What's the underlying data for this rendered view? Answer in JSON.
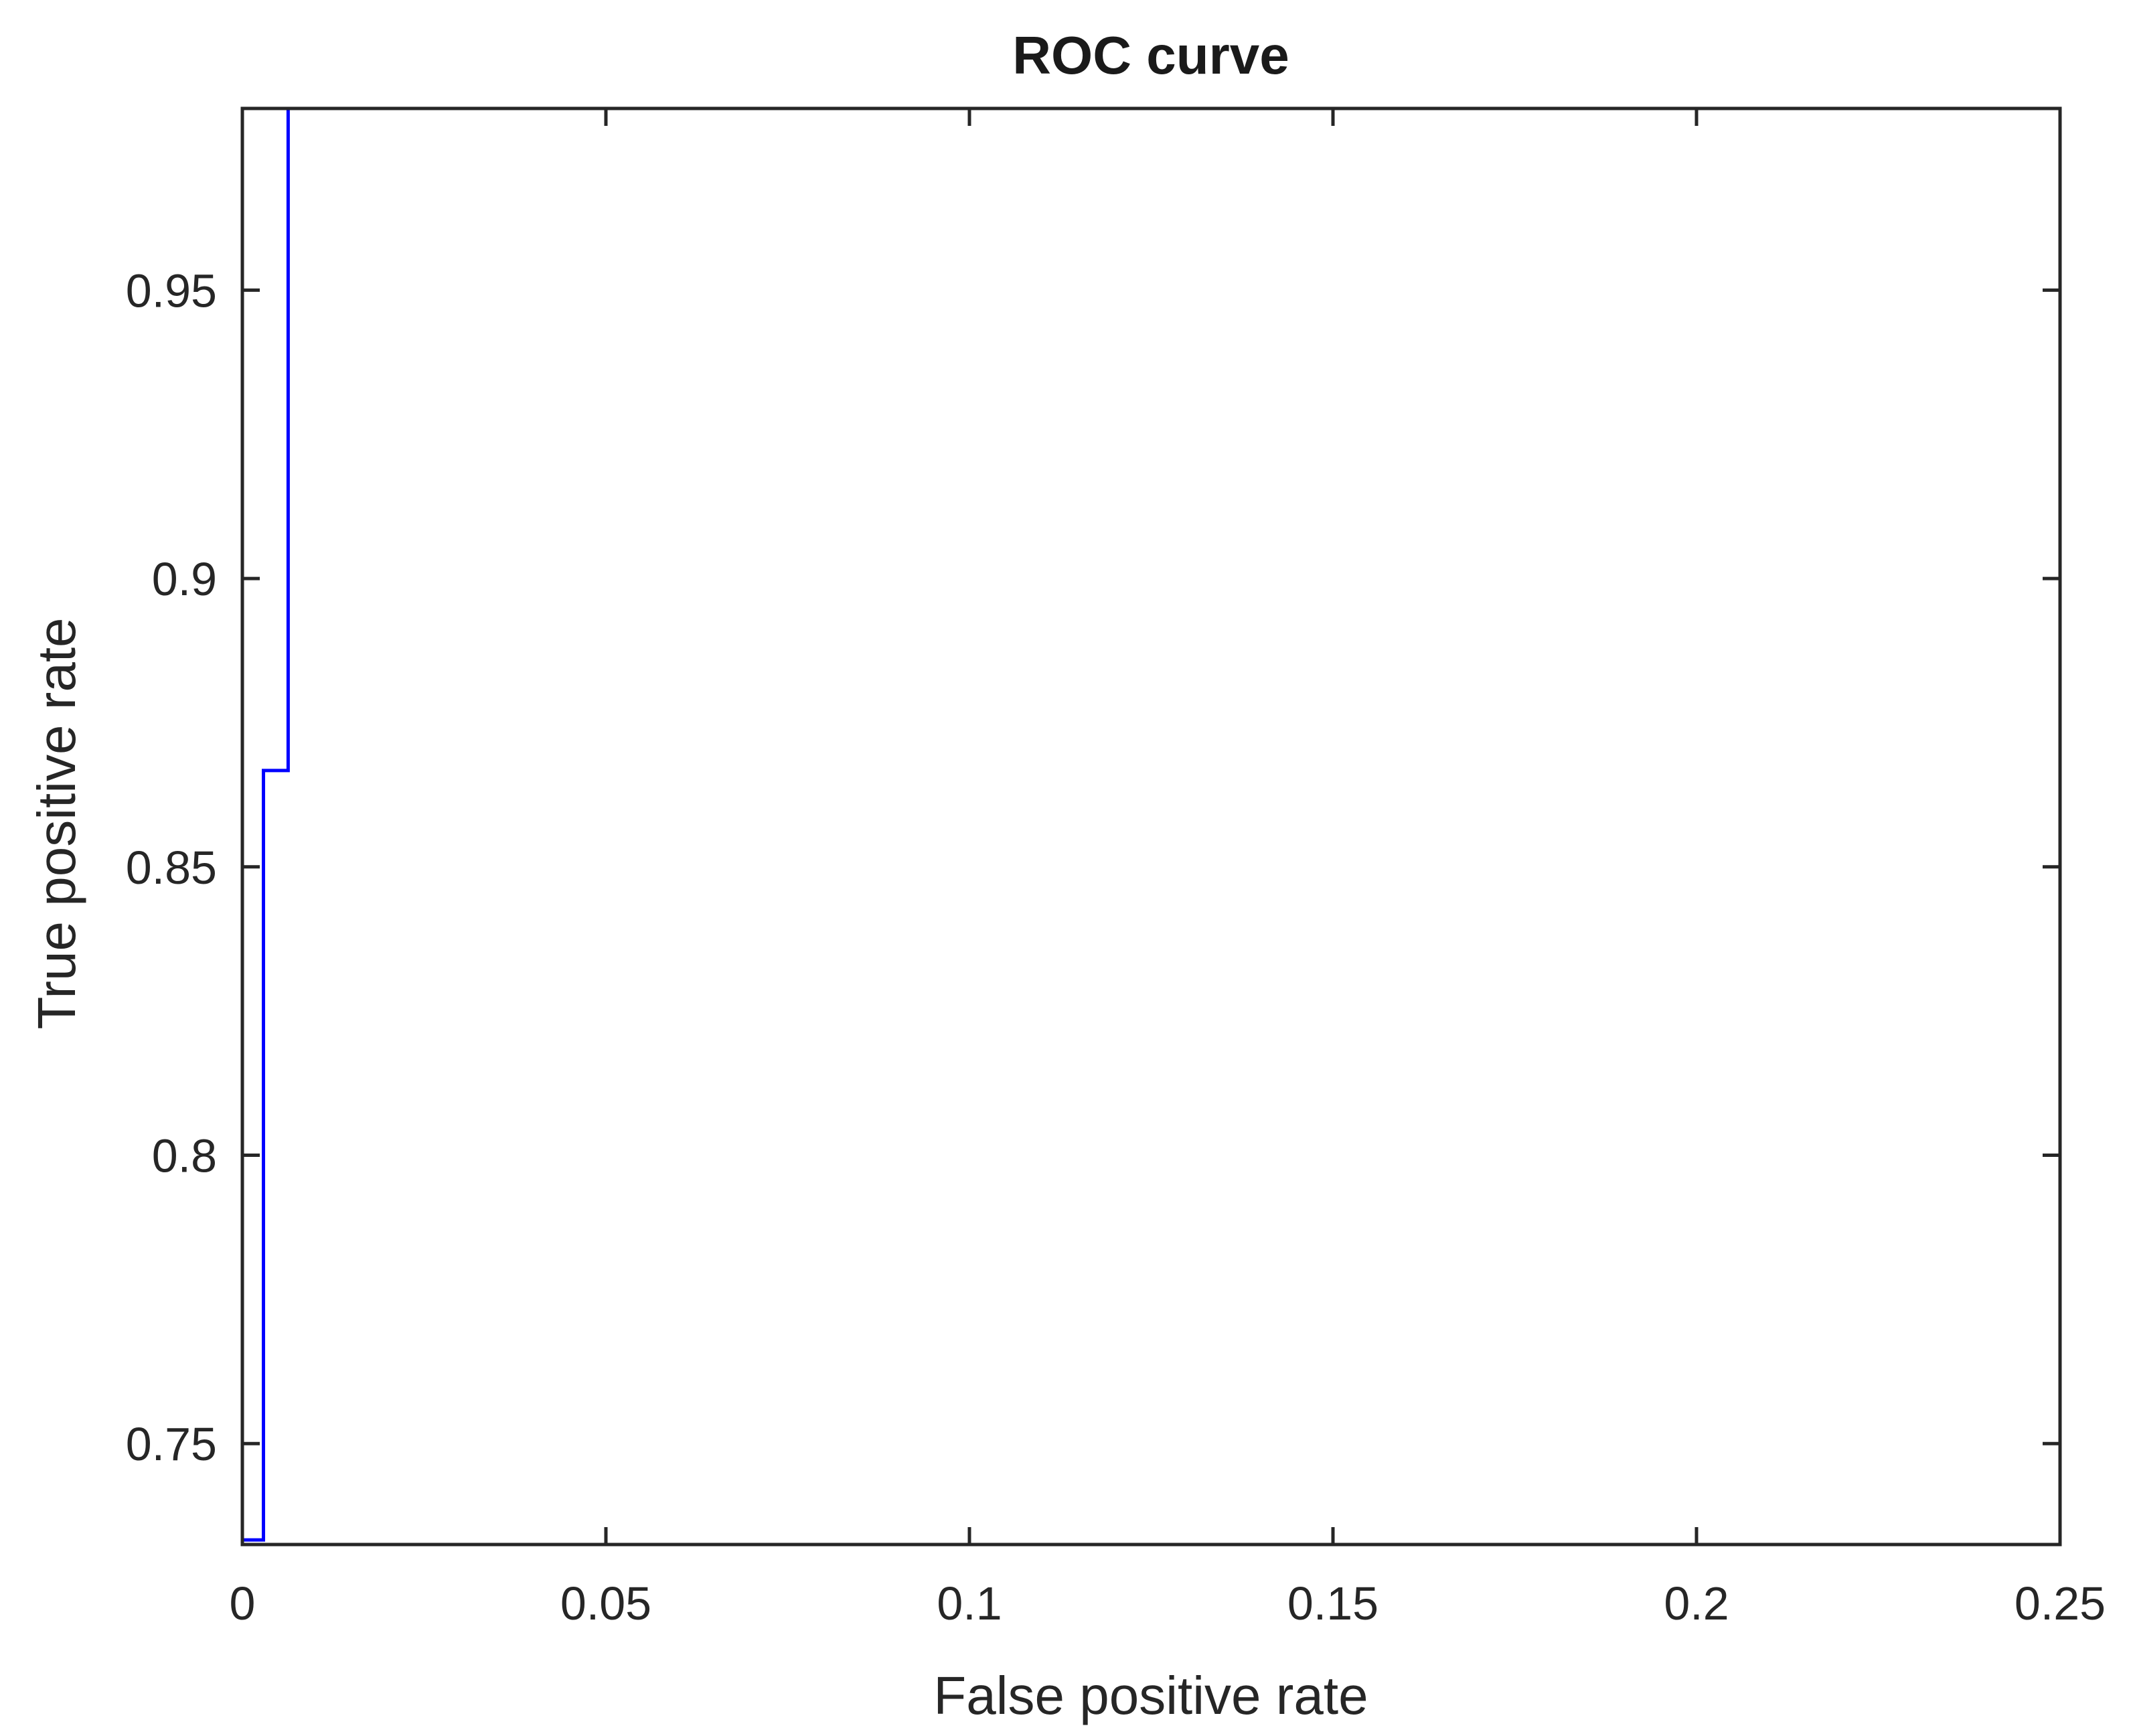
{
  "chart_data": {
    "type": "line",
    "title": "ROC curve",
    "xlabel": "False positive rate",
    "ylabel": "True positive rate",
    "xlim": [
      0,
      0.25
    ],
    "ylim": [
      0.7325,
      0.9815
    ],
    "xticks": [
      0,
      0.05,
      0.1,
      0.15,
      0.2,
      0.25
    ],
    "xtick_labels": [
      "0",
      "0.05",
      "0.1",
      "0.15",
      "0.2",
      "0.25"
    ],
    "yticks": [
      0.75,
      0.8,
      0.85,
      0.9,
      0.95
    ],
    "ytick_labels": [
      "0.75",
      "0.8",
      "0.85",
      "0.9",
      "0.95"
    ],
    "grid": false,
    "series": [
      {
        "color": "#0000ff",
        "x": [
          0,
          0.0029,
          0.0029,
          0.0063,
          0.0063
        ],
        "y": [
          0.7333,
          0.7333,
          0.8667,
          0.8667,
          0.9815
        ]
      }
    ]
  }
}
